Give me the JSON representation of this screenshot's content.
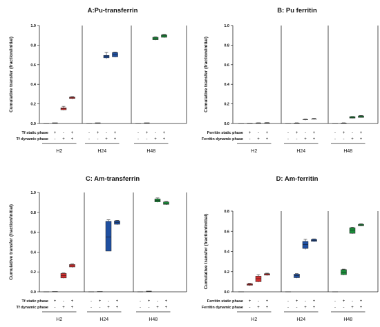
{
  "chart_data": [
    {
      "type": "box",
      "title": "A:Pu-transferrin",
      "ylabel": "Cumulative transfer (fraction/initial)",
      "ylim": [
        0,
        1.0
      ],
      "yticks": [
        "0.0",
        "0.2",
        "0.4",
        "0.6",
        "0.8",
        "1.0"
      ],
      "row_labels": [
        "Tf static phase",
        "Tf dynamic phase"
      ],
      "groups": [
        "H2",
        "H24",
        "H48"
      ],
      "conditions": [
        [
          "-",
          "-"
        ],
        [
          "+",
          "-"
        ],
        [
          "-",
          "+"
        ],
        [
          "+",
          "+"
        ]
      ],
      "colors": [
        "#1f4fa0",
        "#1f4fa0",
        "#d32f2f",
        "#d32f2f",
        "#1f4fa0",
        "#1f4fa0",
        "#1f4fa0",
        "#1f4fa0",
        "#1b8a3a",
        "#1b8a3a",
        "#1b8a3a",
        "#1b8a3a"
      ],
      "boxes": [
        {
          "q1": 0.0,
          "q3": 0.0,
          "med": 0.0,
          "wlo": 0.0,
          "whi": 0.0
        },
        {
          "q1": 0.005,
          "q3": 0.008,
          "med": 0.006,
          "wlo": 0.005,
          "whi": 0.008
        },
        {
          "q1": 0.14,
          "q3": 0.16,
          "med": 0.15,
          "wlo": 0.135,
          "whi": 0.175
        },
        {
          "q1": 0.255,
          "q3": 0.27,
          "med": 0.262,
          "wlo": 0.25,
          "whi": 0.275
        },
        {
          "q1": 0.0,
          "q3": 0.0,
          "med": 0.0,
          "wlo": 0.0,
          "whi": 0.0
        },
        {
          "q1": 0.005,
          "q3": 0.008,
          "med": 0.006,
          "wlo": 0.005,
          "whi": 0.008
        },
        {
          "q1": 0.67,
          "q3": 0.695,
          "med": 0.685,
          "wlo": 0.66,
          "whi": 0.725
        },
        {
          "q1": 0.68,
          "q3": 0.725,
          "med": 0.7,
          "wlo": 0.675,
          "whi": 0.73
        },
        {
          "q1": 0.0,
          "q3": 0.0,
          "med": 0.0,
          "wlo": 0.0,
          "whi": 0.0
        },
        {
          "q1": 0.005,
          "q3": 0.008,
          "med": 0.006,
          "wlo": 0.005,
          "whi": 0.008
        },
        {
          "q1": 0.855,
          "q3": 0.88,
          "med": 0.865,
          "wlo": 0.85,
          "whi": 0.885
        },
        {
          "q1": 0.88,
          "q3": 0.905,
          "med": 0.895,
          "wlo": 0.875,
          "whi": 0.91
        }
      ]
    },
    {
      "type": "box",
      "title": "B: Pu ferritin",
      "ylabel": "Cumulative transfer (fraction/initial)",
      "ylim": [
        0,
        1.0
      ],
      "yticks": [
        "0.0",
        "0.2",
        "0.4",
        "0.6",
        "0.8",
        "1.0"
      ],
      "row_labels": [
        "Ferritin static phase",
        "Ferritin dynamic phase"
      ],
      "groups": [
        "H2",
        "H24",
        "H48"
      ],
      "conditions": [
        [
          "-",
          "-"
        ],
        [
          "+",
          "-"
        ],
        [
          "-",
          "+"
        ],
        [
          "+",
          "+"
        ]
      ],
      "colors": [
        "#1f4fa0",
        "#1f4fa0",
        "#1f4fa0",
        "#1f4fa0",
        "#1f4fa0",
        "#1f4fa0",
        "#1f4fa0",
        "#1f4fa0",
        "#1b8a3a",
        "#1b8a3a",
        "#1b8a3a",
        "#1b8a3a"
      ],
      "boxes": [
        {
          "q1": 0.0,
          "q3": 0.0,
          "med": 0.0,
          "wlo": 0.0,
          "whi": 0.0
        },
        {
          "q1": 0.0,
          "q3": 0.003,
          "med": 0.002,
          "wlo": 0.0,
          "whi": 0.003
        },
        {
          "q1": 0.003,
          "q3": 0.006,
          "med": 0.005,
          "wlo": 0.003,
          "whi": 0.007
        },
        {
          "q1": 0.005,
          "q3": 0.008,
          "med": 0.006,
          "wlo": 0.005,
          "whi": 0.009
        },
        {
          "q1": 0.0,
          "q3": 0.0,
          "med": 0.0,
          "wlo": 0.0,
          "whi": 0.0
        },
        {
          "q1": 0.003,
          "q3": 0.006,
          "med": 0.004,
          "wlo": 0.003,
          "whi": 0.007
        },
        {
          "q1": 0.035,
          "q3": 0.045,
          "med": 0.04,
          "wlo": 0.033,
          "whi": 0.047
        },
        {
          "q1": 0.04,
          "q3": 0.05,
          "med": 0.045,
          "wlo": 0.038,
          "whi": 0.052
        },
        {
          "q1": 0.0,
          "q3": 0.0,
          "med": 0.0,
          "wlo": 0.0,
          "whi": 0.0
        },
        {
          "q1": 0.003,
          "q3": 0.006,
          "med": 0.004,
          "wlo": 0.003,
          "whi": 0.007
        },
        {
          "q1": 0.055,
          "q3": 0.07,
          "med": 0.062,
          "wlo": 0.052,
          "whi": 0.072
        },
        {
          "q1": 0.062,
          "q3": 0.078,
          "med": 0.07,
          "wlo": 0.06,
          "whi": 0.082
        }
      ]
    },
    {
      "type": "box",
      "title": "C: Am-transferrin",
      "ylabel": "Cumulative transfer (fraction/initial)",
      "ylim": [
        0,
        1.0
      ],
      "yticks": [
        "0.0",
        "0.2",
        "0.4",
        "0.6",
        "0.8",
        "1.0"
      ],
      "row_labels": [
        "Tf static phase",
        "Tf dynamic phase"
      ],
      "groups": [
        "H2",
        "H24",
        "H48"
      ],
      "conditions": [
        [
          "-",
          "-"
        ],
        [
          "+",
          "-"
        ],
        [
          "-",
          "+"
        ],
        [
          "+",
          "+"
        ]
      ],
      "colors": [
        "#1f4fa0",
        "#1f4fa0",
        "#d32f2f",
        "#d32f2f",
        "#1f4fa0",
        "#1f4fa0",
        "#1f4fa0",
        "#1f4fa0",
        "#1b8a3a",
        "#1b8a3a",
        "#1b8a3a",
        "#1b8a3a"
      ],
      "boxes": [
        {
          "q1": 0.0,
          "q3": 0.0,
          "med": 0.0,
          "wlo": 0.0,
          "whi": 0.0
        },
        {
          "q1": 0.0,
          "q3": 0.003,
          "med": 0.002,
          "wlo": 0.0,
          "whi": 0.003
        },
        {
          "q1": 0.14,
          "q3": 0.185,
          "med": 0.165,
          "wlo": 0.135,
          "whi": 0.19
        },
        {
          "q1": 0.25,
          "q3": 0.275,
          "med": 0.262,
          "wlo": 0.245,
          "whi": 0.28
        },
        {
          "q1": 0.0,
          "q3": 0.0,
          "med": 0.0,
          "wlo": 0.0,
          "whi": 0.0
        },
        {
          "q1": 0.0,
          "q3": 0.003,
          "med": 0.002,
          "wlo": 0.0,
          "whi": 0.003
        },
        {
          "q1": 0.41,
          "q3": 0.71,
          "med": 0.55,
          "wlo": 0.41,
          "whi": 0.725
        },
        {
          "q1": 0.68,
          "q3": 0.715,
          "med": 0.7,
          "wlo": 0.675,
          "whi": 0.72
        },
        {
          "q1": 0.0,
          "q3": 0.0,
          "med": 0.0,
          "wlo": 0.0,
          "whi": 0.0
        },
        {
          "q1": 0.005,
          "q3": 0.008,
          "med": 0.006,
          "wlo": 0.005,
          "whi": 0.008
        },
        {
          "q1": 0.905,
          "q3": 0.935,
          "med": 0.92,
          "wlo": 0.9,
          "whi": 0.945
        },
        {
          "q1": 0.88,
          "q3": 0.905,
          "med": 0.89,
          "wlo": 0.875,
          "whi": 0.91
        }
      ]
    },
    {
      "type": "box",
      "title": "D: Am-ferritin",
      "ylabel": "Cumulative transfer (fraction/initial)",
      "ylim": [
        0,
        0.8
      ],
      "yticks": [
        "0.0",
        "0.2",
        "0.4",
        "0.6",
        "0.8"
      ],
      "row_labels": [
        "Ferritin static phase",
        "Ferritin dynamic phase"
      ],
      "groups": [
        "H2",
        "H24",
        "H48"
      ],
      "conditions": [
        [
          "-",
          "-"
        ],
        [
          "+",
          "-"
        ],
        [
          "-",
          "+"
        ],
        [
          "+",
          "+"
        ]
      ],
      "colors": [
        "#d32f2f",
        "#d32f2f",
        "#d32f2f",
        "#d32f2f",
        "#1f4fa0",
        "#1f4fa0",
        "#1f4fa0",
        "#1f4fa0",
        "#1b8a3a",
        "#1b8a3a",
        "#1b8a3a",
        "#1b8a3a"
      ],
      "boxes": [
        {
          "q1": 0.0,
          "q3": 0.0,
          "med": 0.0,
          "wlo": 0.0,
          "whi": 0.0
        },
        {
          "q1": 0.065,
          "q3": 0.08,
          "med": 0.072,
          "wlo": 0.06,
          "whi": 0.085
        },
        {
          "q1": 0.1,
          "q3": 0.155,
          "med": 0.13,
          "wlo": 0.095,
          "whi": 0.17
        },
        {
          "q1": 0.165,
          "q3": 0.18,
          "med": 0.172,
          "wlo": 0.16,
          "whi": 0.185
        },
        {
          "q1": 0.0,
          "q3": 0.0,
          "med": 0.0,
          "wlo": 0.0,
          "whi": 0.0
        },
        {
          "q1": 0.14,
          "q3": 0.175,
          "med": 0.16,
          "wlo": 0.135,
          "whi": 0.18
        },
        {
          "q1": 0.43,
          "q3": 0.5,
          "med": 0.47,
          "wlo": 0.42,
          "whi": 0.52
        },
        {
          "q1": 0.5,
          "q3": 0.52,
          "med": 0.51,
          "wlo": 0.495,
          "whi": 0.525
        },
        {
          "q1": 0.0,
          "q3": 0.0,
          "med": 0.0,
          "wlo": 0.0,
          "whi": 0.0
        },
        {
          "q1": 0.17,
          "q3": 0.22,
          "med": 0.195,
          "wlo": 0.165,
          "whi": 0.225
        },
        {
          "q1": 0.58,
          "q3": 0.635,
          "med": 0.61,
          "wlo": 0.575,
          "whi": 0.64
        },
        {
          "q1": 0.655,
          "q3": 0.67,
          "med": 0.662,
          "wlo": 0.65,
          "whi": 0.675
        }
      ]
    }
  ]
}
